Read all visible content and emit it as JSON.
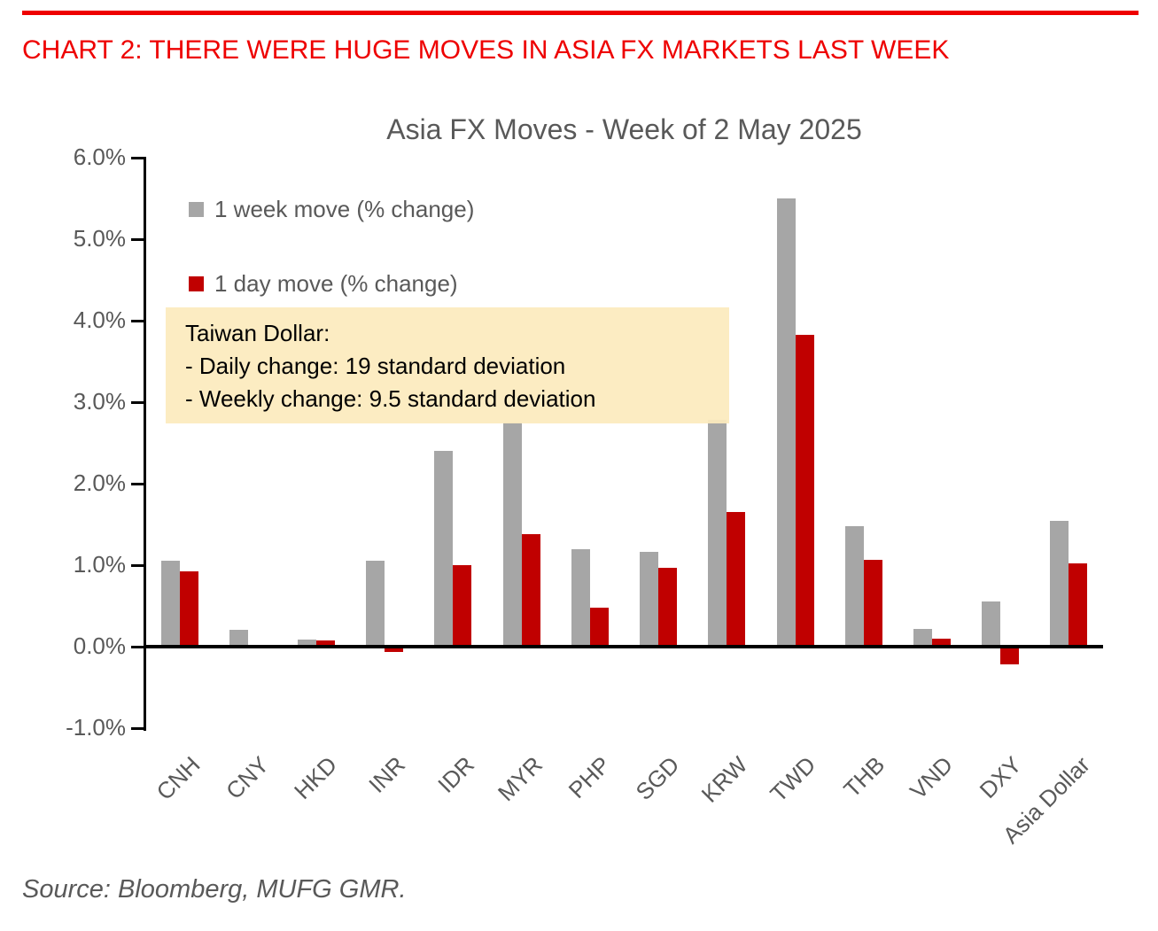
{
  "page": {
    "header_title": "CHART 2: THERE WERE HUGE MOVES IN ASIA FX MARKETS LAST WEEK",
    "source_note": "Source: Bloomberg, MUFG GMR."
  },
  "colors": {
    "header_red": "#EE0000",
    "week_bar_gray": "#A6A6A6",
    "day_bar_red": "#C00000",
    "axis_text_gray": "#595959",
    "axis_line_black": "#000000",
    "annotation_bg": "#FCEBBD"
  },
  "chart_data": {
    "type": "bar",
    "title": "Asia FX Moves - Week of 2 May 2025",
    "categories": [
      "CNH",
      "CNY",
      "HKD",
      "INR",
      "IDR",
      "MYR",
      "PHP",
      "SGD",
      "KRW",
      "TWD",
      "THB",
      "VND",
      "DXY",
      "Asia Dollar"
    ],
    "series": [
      {
        "name": "1 week move (% change)",
        "color": "#A6A6A6",
        "values": [
          1.05,
          0.21,
          0.09,
          1.05,
          2.4,
          2.75,
          1.2,
          1.16,
          2.78,
          5.5,
          1.48,
          0.22,
          0.55,
          1.54
        ]
      },
      {
        "name": "1 day move (% change)",
        "color": "#C00000",
        "values": [
          0.92,
          0.0,
          0.08,
          -0.07,
          1.0,
          1.38,
          0.48,
          0.97,
          1.65,
          3.83,
          1.06,
          0.1,
          -0.22,
          1.02
        ]
      }
    ],
    "ylabel": "",
    "xlabel": "",
    "ylim": [
      -1.0,
      6.0
    ],
    "ytick_step": 1.0,
    "ytick_labels": [
      "-1.0%",
      "0.0%",
      "1.0%",
      "2.0%",
      "3.0%",
      "4.0%",
      "5.0%",
      "6.0%"
    ],
    "grid": false,
    "legend_position": "top-left-inside",
    "annotation": {
      "lines": [
        "Taiwan Dollar:",
        "- Daily change: 19 standard deviation",
        "- Weekly change: 9.5 standard deviation"
      ],
      "bg_color": "#FCEBBD"
    }
  }
}
